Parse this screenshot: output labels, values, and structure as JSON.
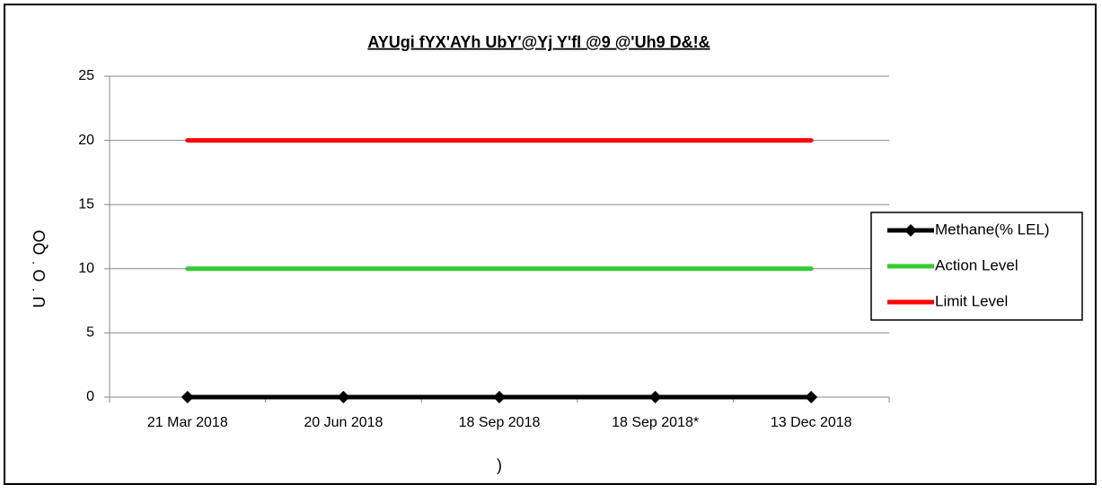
{
  "chart_data": {
    "type": "line",
    "title": "AYUgi fYX'AYh UbY'@Yj Y'fl @9 @'Uh9 D&!&",
    "y_label": "U ˙ O ˙ QO",
    "x_label": ")",
    "categories": [
      "21 Mar 2018",
      "20 Jun 2018",
      "18 Sep 2018",
      "18 Sep 2018*",
      "13 Dec 2018"
    ],
    "series": [
      {
        "name": "Methane(% LEL)",
        "color": "#000000",
        "marker": "diamond",
        "values": [
          0,
          0,
          0,
          0,
          0
        ]
      },
      {
        "name": "Action Level",
        "color": "#33cc33",
        "values": [
          10,
          10,
          10,
          10,
          10
        ]
      },
      {
        "name": "Limit Level",
        "color": "#ff0000",
        "values": [
          20,
          20,
          20,
          20,
          20
        ]
      }
    ],
    "ylim": [
      0,
      25
    ],
    "yticks": [
      0,
      5,
      10,
      15,
      20,
      25
    ],
    "grid": true,
    "legend": "right"
  }
}
